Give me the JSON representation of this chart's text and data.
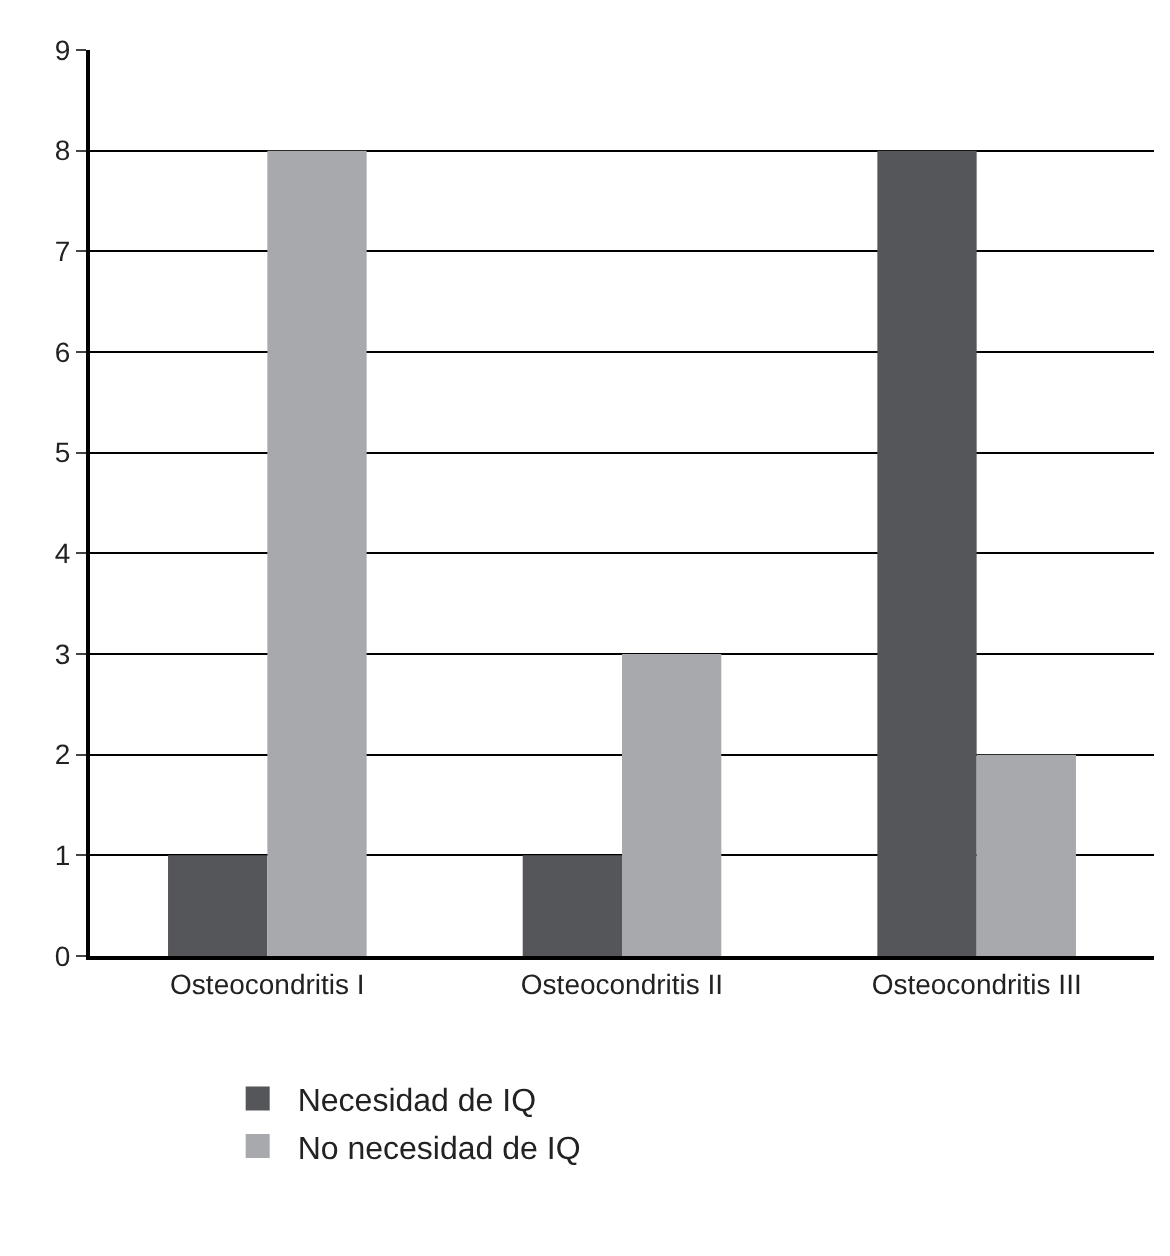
{
  "chart_data": {
    "type": "bar",
    "categories": [
      "Osteocondritis I",
      "Osteocondritis II",
      "Osteocondritis III"
    ],
    "series": [
      {
        "name": "Necesidad de IQ",
        "color": "#55565a",
        "values": [
          1,
          1,
          8
        ]
      },
      {
        "name": "No necesidad de IQ",
        "color": "#a7a9ac",
        "values": [
          8,
          3,
          2
        ]
      }
    ],
    "ylim": [
      0,
      9
    ],
    "yticks": [
      0,
      1,
      2,
      3,
      4,
      5,
      6,
      7,
      8,
      9
    ],
    "grid": "y",
    "legend": "bottom"
  }
}
